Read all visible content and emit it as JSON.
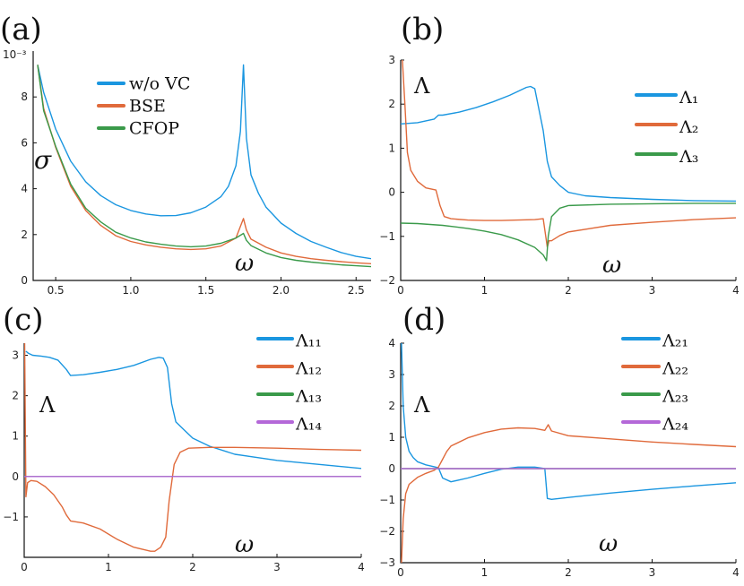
{
  "colors": {
    "blue": "#1a96e0",
    "orange": "#e06a3b",
    "green": "#3a9a4a",
    "purple": "#b468d8"
  },
  "chart_data": [
    {
      "type": "line",
      "panel_label": "(a)",
      "ylabel": "σ",
      "xlabel": "ω",
      "y_multiplier": "10⁻³",
      "xlim": [
        0.35,
        2.6
      ],
      "ylim": [
        0,
        10
      ],
      "xticks": [
        "0.5",
        "1.0",
        "1.5",
        "2.0",
        "2.5"
      ],
      "xtick_values": [
        0.5,
        1.0,
        1.5,
        2.0,
        2.5
      ],
      "yticks": [
        "0",
        "2",
        "4",
        "6",
        "8"
      ],
      "ytick_values": [
        0,
        2,
        4,
        6,
        8
      ],
      "legend_position": "top-center",
      "series": [
        {
          "name": "w/o VC",
          "color": "blue",
          "x": [
            0.38,
            0.42,
            0.5,
            0.6,
            0.7,
            0.8,
            0.9,
            1.0,
            1.1,
            1.2,
            1.3,
            1.4,
            1.5,
            1.6,
            1.65,
            1.7,
            1.73,
            1.75,
            1.77,
            1.8,
            1.85,
            1.9,
            2.0,
            2.1,
            2.2,
            2.3,
            2.4,
            2.5,
            2.6
          ],
          "y": [
            9.4,
            8.2,
            6.6,
            5.2,
            4.3,
            3.7,
            3.3,
            3.05,
            2.9,
            2.82,
            2.83,
            2.95,
            3.2,
            3.65,
            4.1,
            5.0,
            6.5,
            9.4,
            6.2,
            4.6,
            3.8,
            3.2,
            2.5,
            2.05,
            1.7,
            1.45,
            1.22,
            1.05,
            0.95
          ]
        },
        {
          "name": "BSE",
          "color": "orange",
          "x": [
            0.38,
            0.42,
            0.5,
            0.6,
            0.7,
            0.8,
            0.9,
            1.0,
            1.1,
            1.2,
            1.3,
            1.4,
            1.5,
            1.6,
            1.7,
            1.75,
            1.77,
            1.8,
            1.9,
            2.0,
            2.1,
            2.2,
            2.3,
            2.4,
            2.5,
            2.6
          ],
          "y": [
            9.4,
            7.5,
            5.8,
            4.1,
            3.05,
            2.4,
            1.95,
            1.7,
            1.55,
            1.45,
            1.38,
            1.35,
            1.38,
            1.5,
            1.85,
            2.7,
            2.2,
            1.8,
            1.45,
            1.2,
            1.05,
            0.95,
            0.88,
            0.82,
            0.77,
            0.73
          ]
        },
        {
          "name": "CFOP",
          "color": "green",
          "x": [
            0.38,
            0.42,
            0.5,
            0.6,
            0.7,
            0.8,
            0.9,
            1.0,
            1.1,
            1.2,
            1.3,
            1.4,
            1.5,
            1.6,
            1.7,
            1.75,
            1.77,
            1.8,
            1.9,
            2.0,
            2.1,
            2.2,
            2.3,
            2.4,
            2.5,
            2.6
          ],
          "y": [
            9.4,
            7.4,
            5.85,
            4.2,
            3.15,
            2.55,
            2.1,
            1.85,
            1.68,
            1.58,
            1.5,
            1.47,
            1.5,
            1.62,
            1.85,
            2.05,
            1.75,
            1.52,
            1.2,
            1.0,
            0.88,
            0.8,
            0.74,
            0.68,
            0.64,
            0.6
          ]
        }
      ]
    },
    {
      "type": "line",
      "panel_label": "(b)",
      "ylabel": "Λ",
      "xlabel": "ω",
      "xlim": [
        0,
        4
      ],
      "ylim": [
        -2,
        3
      ],
      "xticks": [
        "0",
        "1",
        "2",
        "3",
        "4"
      ],
      "xtick_values": [
        0,
        1,
        2,
        3,
        4
      ],
      "yticks": [
        "−2",
        "−1",
        "0",
        "1",
        "2",
        "3"
      ],
      "ytick_values": [
        -2,
        -1,
        0,
        1,
        2,
        3
      ],
      "legend_position": "top-right",
      "series": [
        {
          "name": "Λ₁",
          "color": "blue",
          "x": [
            0,
            0.2,
            0.4,
            0.45,
            0.5,
            0.7,
            0.9,
            1.1,
            1.3,
            1.5,
            1.55,
            1.6,
            1.7,
            1.75,
            1.8,
            1.9,
            2.0,
            2.2,
            2.5,
            3.0,
            3.5,
            4.0
          ],
          "y": [
            1.55,
            1.58,
            1.66,
            1.75,
            1.75,
            1.82,
            1.92,
            2.05,
            2.2,
            2.38,
            2.4,
            2.35,
            1.4,
            0.7,
            0.35,
            0.15,
            0.0,
            -0.08,
            -0.12,
            -0.16,
            -0.19,
            -0.2
          ]
        },
        {
          "name": "Λ₂",
          "color": "orange",
          "x": [
            0.02,
            0.05,
            0.08,
            0.12,
            0.2,
            0.3,
            0.42,
            0.47,
            0.52,
            0.6,
            0.8,
            1.0,
            1.2,
            1.4,
            1.6,
            1.7,
            1.75,
            1.77,
            1.8,
            1.9,
            2.0,
            2.5,
            3.0,
            3.5,
            4.0
          ],
          "y": [
            3.0,
            2.0,
            0.9,
            0.5,
            0.25,
            0.1,
            0.05,
            -0.3,
            -0.55,
            -0.6,
            -0.63,
            -0.64,
            -0.64,
            -0.63,
            -0.62,
            -0.6,
            -1.25,
            -1.1,
            -1.1,
            -0.98,
            -0.9,
            -0.75,
            -0.68,
            -0.62,
            -0.58
          ]
        },
        {
          "name": "Λ₃",
          "color": "green",
          "x": [
            0,
            0.2,
            0.5,
            0.8,
            1.0,
            1.2,
            1.4,
            1.6,
            1.7,
            1.74,
            1.76,
            1.8,
            1.9,
            2.0,
            2.5,
            3.0,
            3.5,
            4.0
          ],
          "y": [
            -0.7,
            -0.71,
            -0.75,
            -0.82,
            -0.88,
            -0.96,
            -1.08,
            -1.25,
            -1.42,
            -1.55,
            -1.0,
            -0.55,
            -0.36,
            -0.3,
            -0.27,
            -0.26,
            -0.25,
            -0.25
          ]
        }
      ]
    },
    {
      "type": "line",
      "panel_label": "(c)",
      "ylabel": "Λ",
      "xlabel": "ω",
      "xlim": [
        0,
        4
      ],
      "ylim": [
        -2,
        3.3
      ],
      "xticks": [
        "0",
        "1",
        "2",
        "3",
        "4"
      ],
      "xtick_values": [
        0,
        1,
        2,
        3,
        4
      ],
      "yticks": [
        "−1",
        "0",
        "1",
        "2",
        "3"
      ],
      "ytick_values": [
        -1,
        0,
        1,
        2,
        3
      ],
      "legend_position": "top-right",
      "series": [
        {
          "name": "Λ₁₁",
          "color": "blue",
          "x": [
            0.02,
            0.05,
            0.1,
            0.2,
            0.3,
            0.4,
            0.5,
            0.55,
            0.7,
            0.9,
            1.1,
            1.3,
            1.5,
            1.6,
            1.65,
            1.7,
            1.75,
            1.8,
            1.9,
            2.0,
            2.2,
            2.5,
            3.0,
            3.5,
            4.0
          ],
          "y": [
            3.1,
            3.05,
            3.0,
            2.98,
            2.95,
            2.88,
            2.65,
            2.5,
            2.52,
            2.58,
            2.65,
            2.75,
            2.9,
            2.95,
            2.93,
            2.7,
            1.8,
            1.35,
            1.15,
            0.95,
            0.75,
            0.55,
            0.4,
            0.3,
            0.2
          ]
        },
        {
          "name": "Λ₁₂",
          "color": "orange",
          "x": [
            0.005,
            0.02,
            0.04,
            0.08,
            0.15,
            0.25,
            0.35,
            0.45,
            0.5,
            0.55,
            0.7,
            0.9,
            1.1,
            1.3,
            1.5,
            1.55,
            1.62,
            1.68,
            1.72,
            1.78,
            1.85,
            1.95,
            2.2,
            2.5,
            3.0,
            3.5,
            4.0
          ],
          "y": [
            3.3,
            -0.5,
            -0.15,
            -0.1,
            -0.12,
            -0.25,
            -0.45,
            -0.75,
            -0.95,
            -1.1,
            -1.15,
            -1.3,
            -1.55,
            -1.75,
            -1.85,
            -1.85,
            -1.75,
            -1.5,
            -0.6,
            0.3,
            0.6,
            0.7,
            0.72,
            0.72,
            0.7,
            0.67,
            0.65
          ]
        },
        {
          "name": "Λ₁₃",
          "color": "green",
          "x": [
            0,
            4
          ],
          "y": [
            0,
            0
          ]
        },
        {
          "name": "Λ₁₄",
          "color": "purple",
          "x": [
            0,
            4
          ],
          "y": [
            0,
            0
          ]
        }
      ]
    },
    {
      "type": "line",
      "panel_label": "(d)",
      "ylabel": "Λ",
      "xlabel": "ω",
      "xlim": [
        0,
        4
      ],
      "ylim": [
        -3,
        4
      ],
      "xticks": [
        "0",
        "1",
        "2",
        "3",
        "4"
      ],
      "xtick_values": [
        0,
        1,
        2,
        3,
        4
      ],
      "yticks": [
        "−3",
        "−2",
        "−1",
        "0",
        "1",
        "2",
        "3",
        "4"
      ],
      "ytick_values": [
        -3,
        -2,
        -1,
        0,
        1,
        2,
        3,
        4
      ],
      "legend_position": "top-right",
      "series": [
        {
          "name": "Λ₂₁",
          "color": "blue",
          "x": [
            0.01,
            0.03,
            0.06,
            0.1,
            0.15,
            0.2,
            0.3,
            0.4,
            0.45,
            0.5,
            0.6,
            0.8,
            1.0,
            1.2,
            1.4,
            1.6,
            1.72,
            1.75,
            1.8,
            2.0,
            2.5,
            3.0,
            3.5,
            4.0
          ],
          "y": [
            4.0,
            2.0,
            1.0,
            0.55,
            0.35,
            0.22,
            0.12,
            0.06,
            0.03,
            -0.3,
            -0.42,
            -0.3,
            -0.15,
            -0.02,
            0.05,
            0.05,
            0.0,
            -0.95,
            -0.98,
            -0.92,
            -0.78,
            -0.66,
            -0.55,
            -0.45
          ]
        },
        {
          "name": "Λ₂₂",
          "color": "orange",
          "x": [
            0.01,
            0.03,
            0.06,
            0.1,
            0.2,
            0.3,
            0.4,
            0.45,
            0.5,
            0.55,
            0.6,
            0.8,
            1.0,
            1.2,
            1.4,
            1.6,
            1.72,
            1.76,
            1.8,
            2.0,
            2.5,
            3.0,
            3.5,
            4.0
          ],
          "y": [
            -3.0,
            -1.6,
            -0.8,
            -0.5,
            -0.28,
            -0.15,
            -0.05,
            0.05,
            0.3,
            0.55,
            0.72,
            0.98,
            1.15,
            1.26,
            1.3,
            1.28,
            1.22,
            1.4,
            1.2,
            1.05,
            0.95,
            0.85,
            0.77,
            0.7
          ]
        },
        {
          "name": "Λ₂₃",
          "color": "green",
          "x": [
            0,
            4
          ],
          "y": [
            0,
            0
          ]
        },
        {
          "name": "Λ₂₄",
          "color": "purple",
          "x": [
            0,
            4
          ],
          "y": [
            0,
            0
          ]
        }
      ]
    }
  ]
}
